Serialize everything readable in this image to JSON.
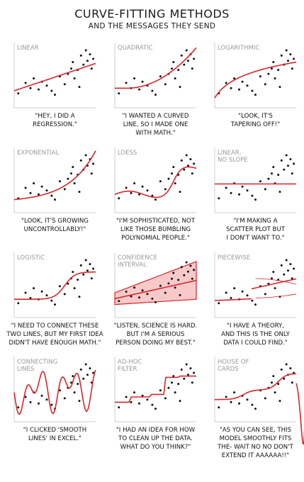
{
  "title": "CURVE-FITTING METHODS",
  "subtitle": "AND THE MESSAGES THEY SEND",
  "panels": [
    {
      "id": "linear",
      "label": [
        "LINEAR"
      ],
      "caption": [
        "\"HEY, I DID A",
        "REGRESSION.\""
      ]
    },
    {
      "id": "quadratic",
      "label": [
        "QUADRATIC"
      ],
      "caption": [
        "\"I WANTED A CURVED",
        "LINE, SO I MADE ONE",
        "WITH MATH.\""
      ]
    },
    {
      "id": "logarithmic",
      "label": [
        "LOGARITHMIC"
      ],
      "caption": [
        "\"LOOK, IT'S",
        "TAPERING OFF!\""
      ]
    },
    {
      "id": "exponential",
      "label": [
        "EXPONENTIAL"
      ],
      "caption": [
        "\"LOOK, IT'S GROWING",
        "UNCONTROLLABLY!\""
      ]
    },
    {
      "id": "loess",
      "label": [
        "LOESS"
      ],
      "caption": [
        "\"I'M SOPHISTICATED, NOT",
        "LIKE THOSE BUMBLING",
        "POLYNOMIAL PEOPLE.\""
      ]
    },
    {
      "id": "linear-no-slope",
      "label": [
        "LINEAR,",
        "NO SLOPE"
      ],
      "caption": [
        "\"I'M MAKING A",
        "SCATTER PLOT BUT",
        "I DON'T WANT TO.\""
      ]
    },
    {
      "id": "logistic",
      "label": [
        "LOGISTIC"
      ],
      "caption": [
        "\"I NEED TO CONNECT THESE",
        "TWO LINES, BUT MY FIRST IDEA",
        "DIDN'T HAVE ENOUGH MATH.\""
      ]
    },
    {
      "id": "confidence-interval",
      "label": [
        "CONFIDENCE",
        "INTERVAL"
      ],
      "caption": [
        "\"LISTEN, SCIENCE IS HARD.",
        "BUT I'M A SERIOUS",
        "PERSON DOING MY BEST.\""
      ]
    },
    {
      "id": "piecewise",
      "label": [
        "PIECEWISE"
      ],
      "caption": [
        "\"I HAVE A THEORY,",
        "AND THIS IS THE ONLY",
        "DATA I COULD FIND.\""
      ]
    },
    {
      "id": "connecting-lines",
      "label": [
        "CONNECTING",
        "LINES"
      ],
      "caption": [
        "\"I CLICKED 'SMOOTH",
        "LINES' IN EXCEL.\""
      ]
    },
    {
      "id": "ad-hoc-filter",
      "label": [
        "AD-HOC",
        "FILTER"
      ],
      "caption": [
        "\"I HAD AN IDEA FOR HOW",
        "TO CLEAN UP THE DATA.",
        "WHAT DO YOU THINK?\""
      ]
    },
    {
      "id": "house-of-cards",
      "label": [
        "HOUSE OF",
        "CARDS"
      ],
      "caption": [
        "\"AS YOU CAN SEE, THIS",
        "MODEL SMOOTHLY FITS",
        "THE- WAIT NO NO DON'T",
        "EXTEND IT AAAAAA!!\""
      ]
    }
  ],
  "colors": {
    "curve": "#d8262b",
    "band": "#f7c9c9",
    "axis": "#cfcfcf",
    "dot": "#111111"
  }
}
